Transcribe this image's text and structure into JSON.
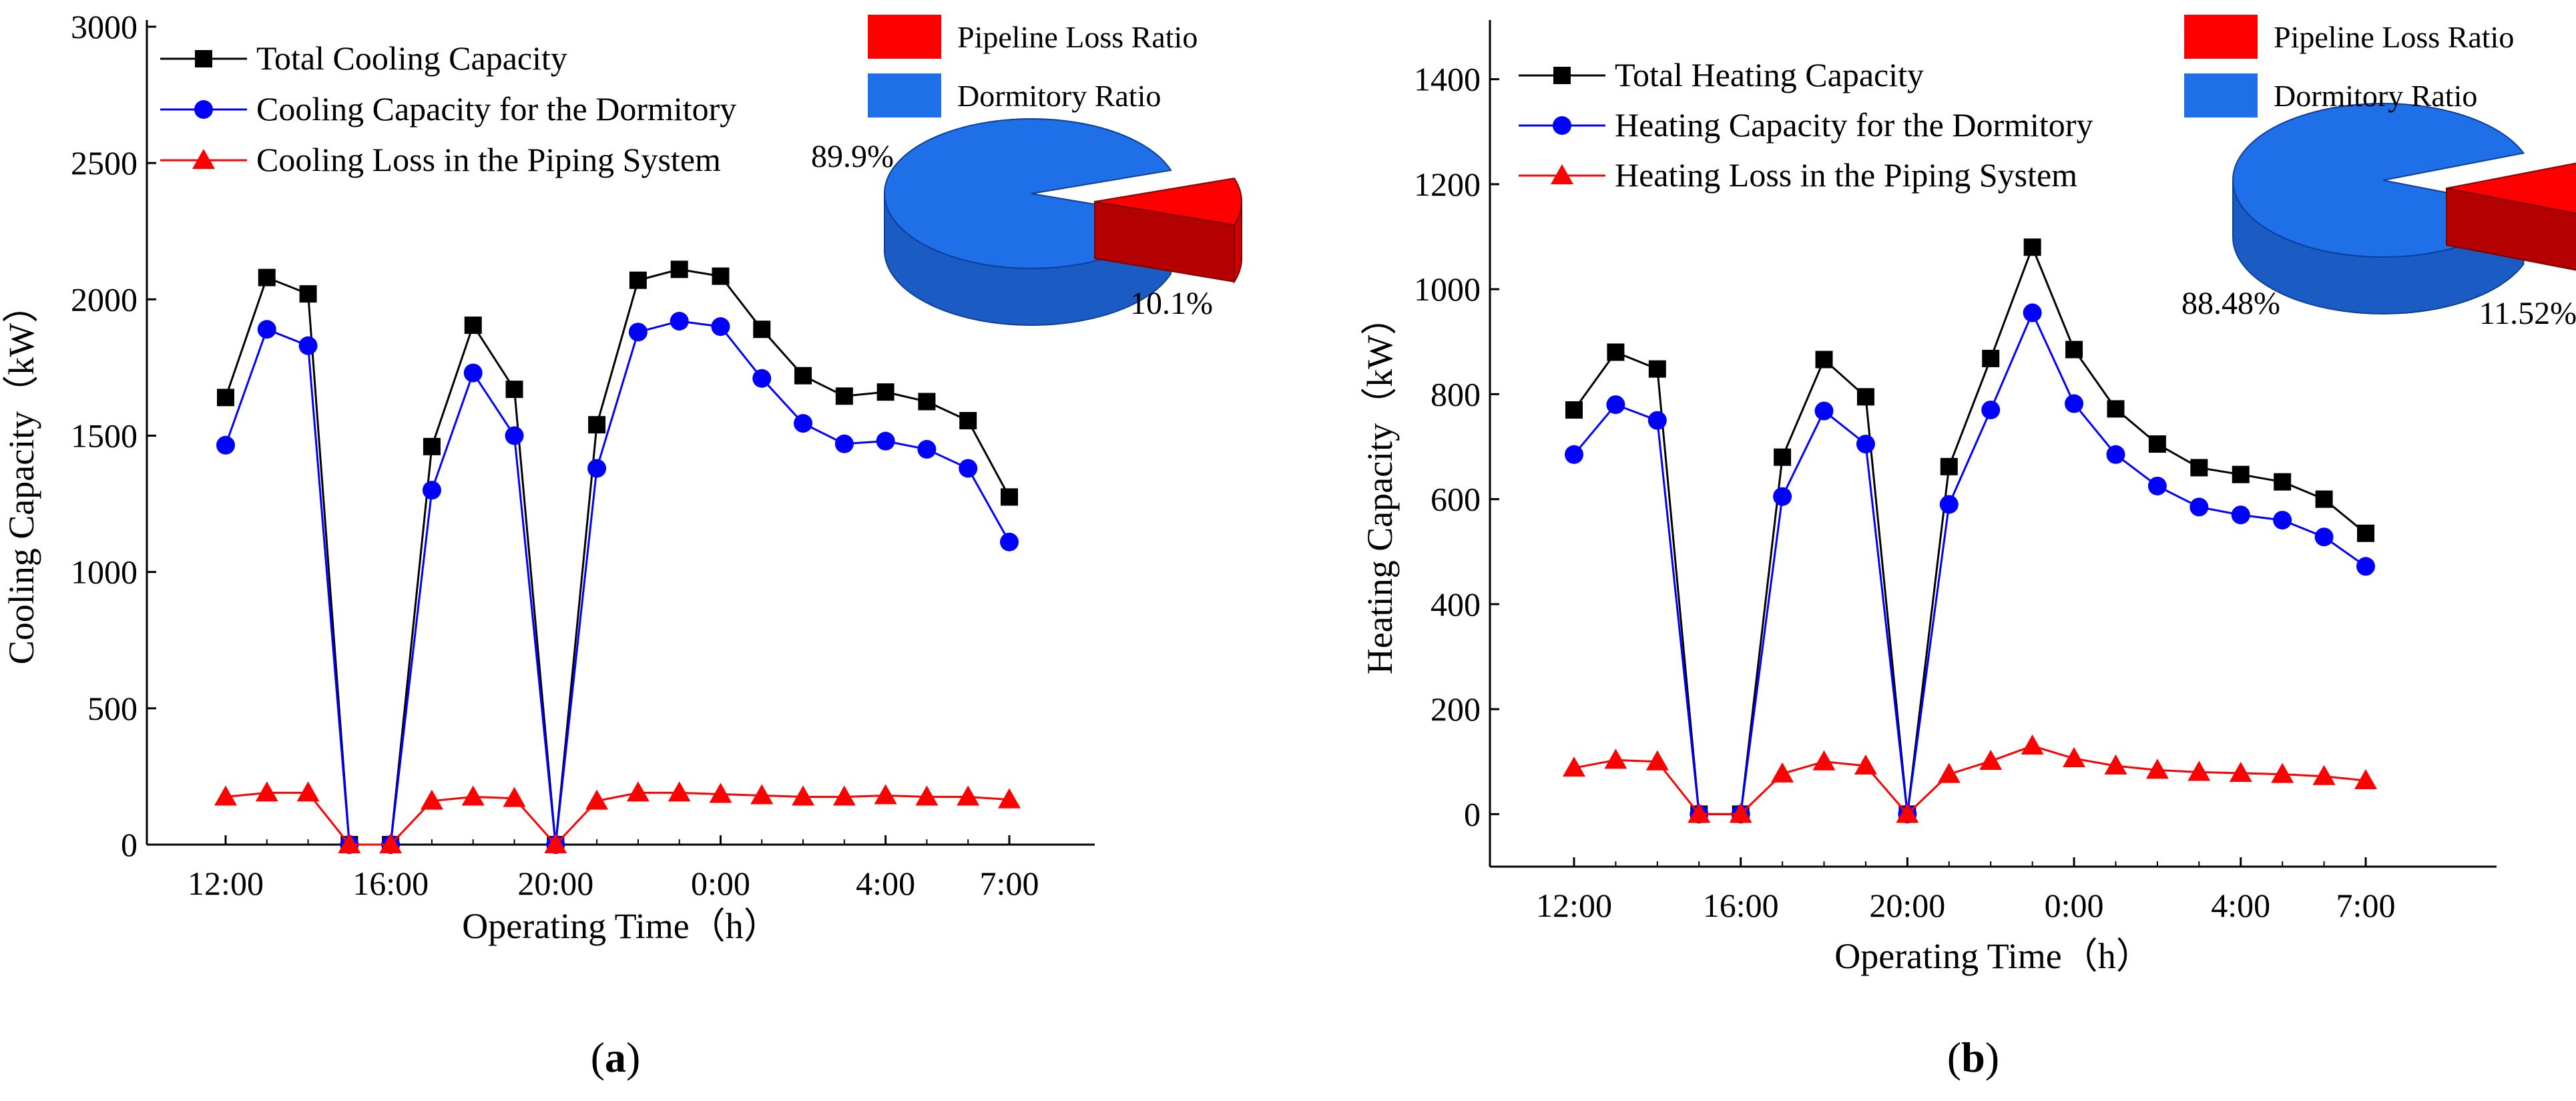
{
  "chart_data": [
    {
      "type": "line",
      "panel_label": "(a)",
      "xlabel": "Operating Time（h）",
      "ylabel": "Cooling Capacity（kW）",
      "ylim": [
        0,
        3000
      ],
      "yticks": [
        0,
        500,
        1000,
        1500,
        2000,
        2500,
        3000
      ],
      "x": [
        "12:00",
        "13:00",
        "14:00",
        "15:00",
        "16:00",
        "17:00",
        "18:00",
        "19:00",
        "20:00",
        "21:00",
        "22:00",
        "23:00",
        "0:00",
        "1:00",
        "2:00",
        "3:00",
        "4:00",
        "5:00",
        "6:00",
        "7:00"
      ],
      "xtick_labels": [
        "12:00",
        "16:00",
        "20:00",
        "0:00",
        "4:00",
        "7:00"
      ],
      "series": [
        {
          "name": "Total Cooling Capacity",
          "color": "#000000",
          "marker": "square",
          "values": [
            1640,
            2080,
            2020,
            0,
            0,
            1460,
            1905,
            1670,
            0,
            1540,
            2070,
            2110,
            2085,
            1890,
            1720,
            1645,
            1660,
            1625,
            1555,
            1275
          ]
        },
        {
          "name": "Cooling Capacity for the Dormitory",
          "color": "#0000ff",
          "marker": "circle",
          "values": [
            1465,
            1890,
            1830,
            0,
            0,
            1300,
            1730,
            1500,
            0,
            1380,
            1880,
            1920,
            1900,
            1710,
            1545,
            1470,
            1480,
            1450,
            1380,
            1110
          ]
        },
        {
          "name": "Cooling Loss in the Piping System",
          "color": "#ff0000",
          "marker": "triangle",
          "values": [
            175,
            190,
            190,
            0,
            0,
            160,
            175,
            170,
            0,
            160,
            190,
            190,
            185,
            180,
            175,
            175,
            180,
            175,
            175,
            165
          ]
        }
      ],
      "legend_position": "top-left",
      "pie": {
        "legend": [
          {
            "label": "Pipeline Loss Ratio",
            "color": "#ff0000"
          },
          {
            "label": "Dormitory Ratio",
            "color": "#1f6fe8"
          }
        ],
        "slices": [
          {
            "label": "Dormitory Ratio",
            "value": 89.9,
            "text": "89.9%"
          },
          {
            "label": "Pipeline Loss Ratio",
            "value": 10.1,
            "text": "10.1%"
          }
        ]
      }
    },
    {
      "type": "line",
      "panel_label": "(b)",
      "xlabel": "Operating Time（h）",
      "ylabel": "Heating Capacity（kW）",
      "ylim": [
        -100,
        1500
      ],
      "yticks": [
        0,
        200,
        400,
        600,
        800,
        1000,
        1200,
        1400
      ],
      "x": [
        "12:00",
        "13:00",
        "14:00",
        "15:00",
        "16:00",
        "17:00",
        "18:00",
        "19:00",
        "20:00",
        "21:00",
        "22:00",
        "23:00",
        "0:00",
        "1:00",
        "2:00",
        "3:00",
        "4:00",
        "5:00",
        "6:00",
        "7:00"
      ],
      "xtick_labels": [
        "12:00",
        "16:00",
        "20:00",
        "0:00",
        "4:00",
        "7:00"
      ],
      "series": [
        {
          "name": "Total Heating Capacity",
          "color": "#000000",
          "marker": "square",
          "values": [
            770,
            880,
            848,
            0,
            0,
            680,
            866,
            795,
            0,
            662,
            868,
            1080,
            885,
            772,
            705,
            660,
            647,
            633,
            600,
            535
          ]
        },
        {
          "name": "Heating Capacity for the Dormitory",
          "color": "#0000ff",
          "marker": "circle",
          "values": [
            685,
            780,
            750,
            0,
            0,
            605,
            768,
            705,
            0,
            590,
            770,
            955,
            782,
            685,
            625,
            585,
            570,
            560,
            528,
            472
          ]
        },
        {
          "name": "Heating Loss in the Piping System",
          "color": "#ff0000",
          "marker": "triangle",
          "values": [
            88,
            103,
            100,
            0,
            0,
            77,
            100,
            92,
            0,
            76,
            101,
            130,
            106,
            92,
            84,
            80,
            78,
            76,
            72,
            64
          ]
        }
      ],
      "legend_position": "top-left",
      "pie": {
        "legend": [
          {
            "label": "Pipeline Loss Ratio",
            "color": "#ff0000"
          },
          {
            "label": "Dormitory Ratio",
            "color": "#1f6fe8"
          }
        ],
        "slices": [
          {
            "label": "Dormitory Ratio",
            "value": 88.48,
            "text": "88.48%"
          },
          {
            "label": "Pipeline Loss Ratio",
            "value": 11.52,
            "text": "11.52%"
          }
        ]
      }
    }
  ]
}
